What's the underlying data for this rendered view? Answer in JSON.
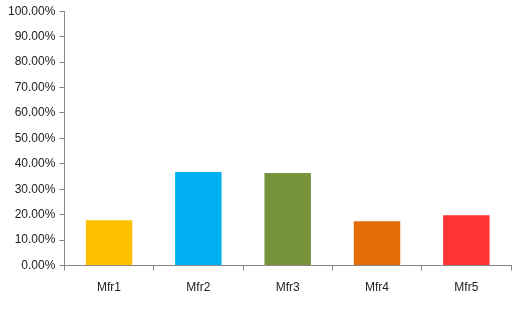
{
  "chart_data": {
    "type": "bar",
    "categories": [
      "Mfr1",
      "Mfr2",
      "Mfr3",
      "Mfr4",
      "Mfr5"
    ],
    "values": [
      17.8,
      36.8,
      36.4,
      17.4,
      19.8
    ],
    "colors": [
      "#FFC000",
      "#00B0F0",
      "#77933C",
      "#E36C09",
      "#FF3333"
    ],
    "ylim": [
      0,
      100
    ],
    "yticks": [
      {
        "value": 0,
        "label": "0.00%"
      },
      {
        "value": 10,
        "label": "10.00%"
      },
      {
        "value": 20,
        "label": "20.00%"
      },
      {
        "value": 30,
        "label": "30.00%"
      },
      {
        "value": 40,
        "label": "40.00%"
      },
      {
        "value": 50,
        "label": "50.00%"
      },
      {
        "value": 60,
        "label": "60.00%"
      },
      {
        "value": 70,
        "label": "70.00%"
      },
      {
        "value": 80,
        "label": "80.00%"
      },
      {
        "value": 90,
        "label": "90.00%"
      },
      {
        "value": 100,
        "label": "100.00%"
      }
    ],
    "grid": false
  }
}
